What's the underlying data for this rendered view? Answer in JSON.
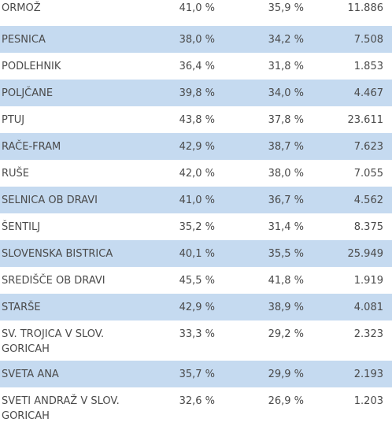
{
  "rows": [
    {
      "name": "ORMOŽ",
      "a": "41,0 %",
      "b": "35,9 %",
      "c": "11.886"
    },
    {
      "name": "PESNICA",
      "a": "38,0 %",
      "b": "34,2 %",
      "c": "7.508"
    },
    {
      "name": "PODLEHNIK",
      "a": "36,4 %",
      "b": "31,8 %",
      "c": "1.853"
    },
    {
      "name": "POLJČANE",
      "a": "39,8 %",
      "b": "34,0 %",
      "c": "4.467"
    },
    {
      "name": "PTUJ",
      "a": "43,8 %",
      "b": "37,8 %",
      "c": "23.611"
    },
    {
      "name": "RAČE-FRAM",
      "a": "42,9 %",
      "b": "38,7 %",
      "c": "7.623"
    },
    {
      "name": "RUŠE",
      "a": "42,0 %",
      "b": "38,0 %",
      "c": "7.055"
    },
    {
      "name": "SELNICA OB DRAVI",
      "a": "41,0 %",
      "b": "36,7 %",
      "c": "4.562"
    },
    {
      "name": "ŠENTILJ",
      "a": "35,2 %",
      "b": "31,4 %",
      "c": "8.375"
    },
    {
      "name": "SLOVENSKA BISTRICA",
      "a": "40,1 %",
      "b": "35,5 %",
      "c": "25.949"
    },
    {
      "name": "SREDIŠČE OB DRAVI",
      "a": "45,5 %",
      "b": "41,8 %",
      "c": "1.919"
    },
    {
      "name": "STARŠE",
      "a": "42,9 %",
      "b": "38,9 %",
      "c": "4.081"
    },
    {
      "name": "SV. TROJICA V SLOV. GORICAH",
      "a": "33,3 %",
      "b": "29,2 %",
      "c": "2.323"
    },
    {
      "name": "SVETA ANA",
      "a": "35,7 %",
      "b": "29,9 %",
      "c": "2.193"
    },
    {
      "name": "SVETI ANDRAŽ V SLOV. GORICAH",
      "a": "32,6 %",
      "b": "26,9 %",
      "c": "1.203"
    }
  ]
}
